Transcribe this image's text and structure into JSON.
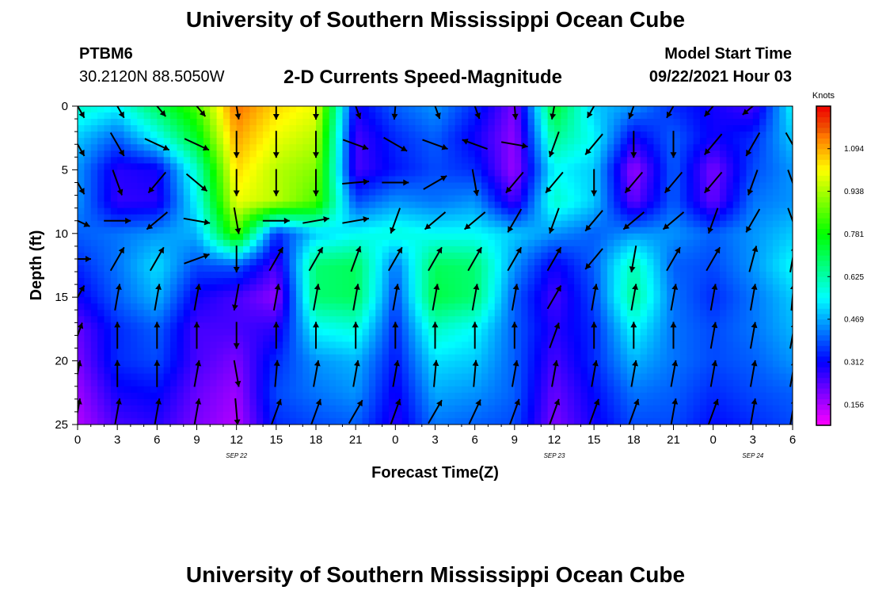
{
  "header": {
    "title": "University of Southern Mississippi Ocean Cube",
    "station_id": "PTBM6",
    "station_coords": "30.2120N  88.5050W",
    "plot_title": "2-D Currents Speed-Magnitude",
    "model_label": "Model Start Time",
    "model_time": "09/22/2021 Hour 03"
  },
  "footer": {
    "title": "University of Southern Mississippi Ocean Cube"
  },
  "chart_data": {
    "type": "heatmap",
    "title": "2-D Currents Speed-Magnitude",
    "xlabel": "Forecast Time(Z)",
    "ylabel": "Depth (ft)",
    "x_ticks": [
      "0",
      "3",
      "6",
      "9",
      "12",
      "15",
      "18",
      "21",
      "0",
      "3",
      "6",
      "9",
      "12",
      "15",
      "18",
      "21",
      "0",
      "3",
      "6"
    ],
    "x_hours_range": [
      0,
      54
    ],
    "date_labels": [
      {
        "hour": 12,
        "text": "SEP 22"
      },
      {
        "hour": 36,
        "text": "SEP 23"
      },
      {
        "hour": 51,
        "text": "SEP 24"
      }
    ],
    "y_ticks": [
      "0",
      "5",
      "10",
      "15",
      "20",
      "25"
    ],
    "ylim": [
      0,
      25
    ],
    "y_inverted": true,
    "colorbar": {
      "units": "Knots",
      "ticks": [
        "1.094",
        "0.938",
        "0.781",
        "0.625",
        "0.469",
        "0.312",
        "0.156"
      ],
      "range": [
        0.08,
        1.25
      ]
    },
    "speed_grid": {
      "hours": [
        0,
        3,
        6,
        9,
        12,
        15,
        18,
        21,
        24,
        27,
        30,
        33,
        36,
        39,
        42,
        45,
        48,
        51,
        54
      ],
      "depths": [
        0,
        2.5,
        5,
        7.5,
        10,
        12.5,
        15,
        17.5,
        20,
        22.5,
        25
      ],
      "rows": [
        [
          0.6,
          0.55,
          0.7,
          0.85,
          1.15,
          1.05,
          1.0,
          0.3,
          0.4,
          0.45,
          0.35,
          0.2,
          0.75,
          0.5,
          0.45,
          0.35,
          0.3,
          0.25,
          0.55
        ],
        [
          0.5,
          0.4,
          0.55,
          0.75,
          1.1,
          1.0,
          0.95,
          0.25,
          0.35,
          0.4,
          0.3,
          0.18,
          0.65,
          0.55,
          0.3,
          0.4,
          0.3,
          0.35,
          0.5
        ],
        [
          0.45,
          0.28,
          0.3,
          0.6,
          1.05,
          0.95,
          0.9,
          0.25,
          0.33,
          0.38,
          0.35,
          0.17,
          0.55,
          0.5,
          0.17,
          0.4,
          0.2,
          0.38,
          0.45
        ],
        [
          0.45,
          0.27,
          0.28,
          0.55,
          1.0,
          0.95,
          0.85,
          0.38,
          0.45,
          0.42,
          0.45,
          0.25,
          0.6,
          0.5,
          0.22,
          0.4,
          0.22,
          0.42,
          0.45
        ],
        [
          0.4,
          0.42,
          0.45,
          0.48,
          0.85,
          0.35,
          0.5,
          0.55,
          0.58,
          0.55,
          0.55,
          0.5,
          0.45,
          0.4,
          0.45,
          0.45,
          0.4,
          0.45,
          0.5
        ],
        [
          0.35,
          0.42,
          0.52,
          0.38,
          0.4,
          0.25,
          0.68,
          0.7,
          0.42,
          0.7,
          0.68,
          0.45,
          0.3,
          0.4,
          0.62,
          0.4,
          0.38,
          0.45,
          0.55
        ],
        [
          0.3,
          0.4,
          0.48,
          0.3,
          0.25,
          0.18,
          0.68,
          0.7,
          0.38,
          0.72,
          0.68,
          0.4,
          0.25,
          0.38,
          0.65,
          0.42,
          0.35,
          0.42,
          0.5
        ],
        [
          0.22,
          0.35,
          0.4,
          0.25,
          0.25,
          0.28,
          0.55,
          0.58,
          0.35,
          0.6,
          0.55,
          0.4,
          0.28,
          0.35,
          0.55,
          0.42,
          0.38,
          0.42,
          0.48
        ],
        [
          0.2,
          0.35,
          0.38,
          0.25,
          0.2,
          0.35,
          0.45,
          0.48,
          0.33,
          0.52,
          0.5,
          0.4,
          0.25,
          0.35,
          0.48,
          0.42,
          0.38,
          0.4,
          0.45
        ],
        [
          0.17,
          0.3,
          0.32,
          0.22,
          0.17,
          0.38,
          0.42,
          0.45,
          0.3,
          0.47,
          0.45,
          0.4,
          0.22,
          0.32,
          0.42,
          0.4,
          0.35,
          0.38,
          0.4
        ],
        [
          0.15,
          0.25,
          0.28,
          0.2,
          0.15,
          0.35,
          0.38,
          0.4,
          0.28,
          0.42,
          0.4,
          0.38,
          0.2,
          0.3,
          0.38,
          0.38,
          0.32,
          0.35,
          0.38
        ]
      ]
    },
    "vectors": {
      "hours": [
        0,
        3,
        6,
        9,
        12,
        15,
        18,
        21,
        24,
        27,
        30,
        33,
        36,
        39,
        42,
        45,
        48,
        51,
        54
      ],
      "depths": [
        0,
        3,
        6,
        9,
        12,
        15,
        18,
        21,
        24
      ],
      "angles_deg": [
        [
          150,
          150,
          140,
          140,
          170,
          180,
          180,
          160,
          185,
          160,
          160,
          175,
          190,
          210,
          200,
          210,
          220,
          230,
          160
        ],
        [
          150,
          150,
          115,
          115,
          180,
          180,
          180,
          110,
          120,
          110,
          290,
          100,
          200,
          220,
          180,
          180,
          220,
          210,
          150
        ],
        [
          150,
          160,
          220,
          130,
          180,
          180,
          180,
          85,
          90,
          60,
          170,
          220,
          220,
          180,
          220,
          220,
          220,
          200,
          160
        ],
        [
          115,
          90,
          230,
          100,
          170,
          90,
          80,
          80,
          200,
          230,
          230,
          210,
          200,
          220,
          230,
          230,
          200,
          210,
          160
        ],
        [
          90,
          30,
          30,
          70,
          180,
          30,
          30,
          20,
          30,
          30,
          30,
          30,
          30,
          220,
          190,
          30,
          30,
          15,
          10
        ],
        [
          30,
          10,
          10,
          10,
          190,
          10,
          10,
          10,
          10,
          10,
          10,
          10,
          30,
          10,
          10,
          10,
          10,
          10,
          5
        ],
        [
          20,
          0,
          0,
          0,
          180,
          0,
          0,
          0,
          0,
          0,
          0,
          0,
          20,
          0,
          0,
          0,
          10,
          10,
          10
        ],
        [
          10,
          0,
          0,
          10,
          170,
          5,
          10,
          10,
          10,
          5,
          5,
          10,
          10,
          10,
          10,
          10,
          10,
          10,
          10
        ],
        [
          10,
          10,
          10,
          10,
          175,
          20,
          20,
          30,
          20,
          30,
          25,
          20,
          20,
          20,
          20,
          10,
          20,
          10,
          10
        ]
      ]
    }
  }
}
